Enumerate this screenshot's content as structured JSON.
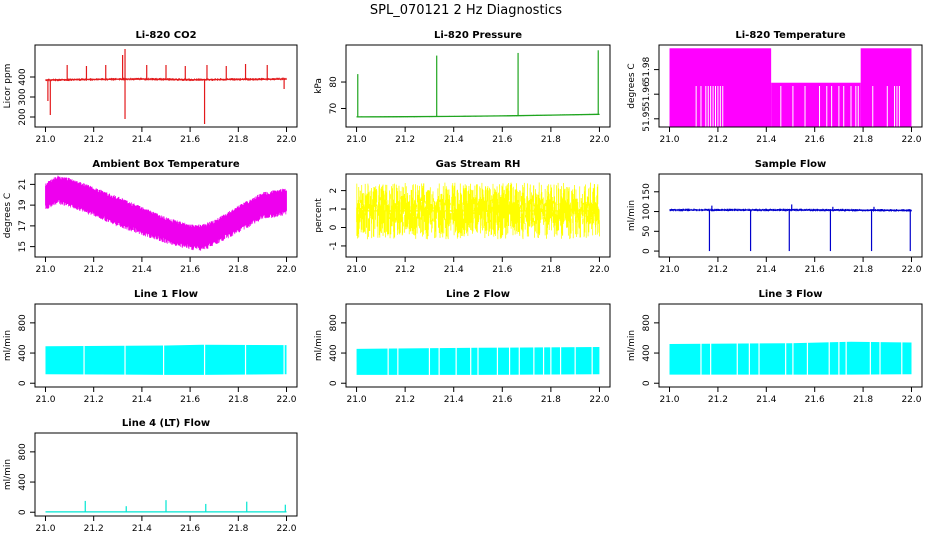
{
  "figure_title": "SPL_070121  2 Hz Diagnostics",
  "chart_data": [
    {
      "type": "line",
      "title": "Li-820 CO2",
      "ylabel": "Licor ppm",
      "xlim": [
        21.0,
        22.0
      ],
      "ylim": [
        150,
        560
      ],
      "xticks": [
        "21.0",
        "21.2",
        "21.4",
        "21.6",
        "21.8",
        "22.0"
      ],
      "yticks": [
        {
          "v": 200,
          "label": "200"
        },
        {
          "v": 300,
          "label": "300"
        },
        {
          "v": 400,
          "label": "400"
        }
      ],
      "color": "#e31a1c",
      "render": "noise",
      "series": [
        {
          "x": [
            21.0,
            21.2,
            21.4,
            21.6,
            21.8,
            22.0
          ],
          "y": [
            385,
            388,
            390,
            386,
            388,
            390
          ]
        }
      ],
      "band": 10,
      "spikes": [
        {
          "x": 21.01,
          "y": 280
        },
        {
          "x": 21.02,
          "y": 210
        },
        {
          "x": 21.09,
          "y": 460
        },
        {
          "x": 21.17,
          "y": 455
        },
        {
          "x": 21.25,
          "y": 460
        },
        {
          "x": 21.32,
          "y": 510
        },
        {
          "x": 21.33,
          "y": 190
        },
        {
          "x": 21.33,
          "y": 540
        },
        {
          "x": 21.42,
          "y": 460
        },
        {
          "x": 21.5,
          "y": 460
        },
        {
          "x": 21.58,
          "y": 455
        },
        {
          "x": 21.66,
          "y": 165
        },
        {
          "x": 21.67,
          "y": 460
        },
        {
          "x": 21.75,
          "y": 455
        },
        {
          "x": 21.83,
          "y": 465
        },
        {
          "x": 21.92,
          "y": 460
        },
        {
          "x": 21.99,
          "y": 340
        }
      ]
    },
    {
      "type": "line",
      "title": "Li-820 Pressure",
      "ylabel": "kPa",
      "xlim": [
        21.0,
        22.0
      ],
      "ylim": [
        63,
        94
      ],
      "xticks": [
        "21.0",
        "21.2",
        "21.4",
        "21.6",
        "21.8",
        "22.0"
      ],
      "yticks": [
        {
          "v": 70,
          "label": "70"
        },
        {
          "v": 80,
          "label": "80"
        }
      ],
      "color": "#1fa51f",
      "render": "noise",
      "series": [
        {
          "x": [
            21.0,
            21.2,
            21.4,
            21.6,
            21.8,
            22.0
          ],
          "y": [
            66.8,
            66.9,
            67.0,
            67.2,
            67.5,
            67.8
          ]
        }
      ],
      "band": 0.3,
      "spikes": [
        {
          "x": 21.005,
          "y": 83
        },
        {
          "x": 21.33,
          "y": 90
        },
        {
          "x": 21.665,
          "y": 91
        },
        {
          "x": 21.995,
          "y": 92
        }
      ]
    },
    {
      "type": "area",
      "title": "Li-820 Temperature",
      "ylabel": "degrees C",
      "xlim": [
        21.0,
        22.0
      ],
      "ylim": [
        51.945,
        51.995
      ],
      "xticks": [
        "21.0",
        "21.2",
        "21.4",
        "21.6",
        "21.8",
        "22.0"
      ],
      "yticks": [
        {
          "v": 51.95,
          "label": "51.95"
        },
        {
          "v": 51.965,
          "label": "51.96"
        },
        {
          "v": 51.98,
          "label": "51.98"
        }
      ],
      "color": "#ff00ff",
      "render": "bands",
      "bands": [
        {
          "x0": 21.0,
          "x1": 21.42,
          "ylo": 51.945,
          "yhi": 51.993
        },
        {
          "x0": 21.42,
          "x1": 21.79,
          "ylo": 51.945,
          "yhi": 51.972
        },
        {
          "x0": 21.79,
          "x1": 22.0,
          "ylo": 51.945,
          "yhi": 51.993
        }
      ],
      "notches": [
        21.11,
        21.13,
        21.15,
        21.16,
        21.17,
        21.18,
        21.19,
        21.2,
        21.21,
        21.22,
        21.46,
        21.51,
        21.56,
        21.62,
        21.65,
        21.67,
        21.7,
        21.72,
        21.75,
        21.77,
        21.78,
        21.84,
        21.9,
        21.93,
        21.94,
        21.95
      ],
      "notch_top": 51.97
    },
    {
      "type": "area",
      "title": "Ambient Box Temperature",
      "ylabel": "degrees C",
      "xlim": [
        21.0,
        22.0
      ],
      "ylim": [
        14.0,
        22.0
      ],
      "xticks": [
        "21.0",
        "21.2",
        "21.4",
        "21.6",
        "21.8",
        "22.0"
      ],
      "yticks": [
        {
          "v": 15,
          "label": "15"
        },
        {
          "v": 17,
          "label": "17"
        },
        {
          "v": 19,
          "label": "19"
        },
        {
          "v": 21,
          "label": "21"
        }
      ],
      "color": "#ee00ee",
      "render": "envelope",
      "x": [
        21.0,
        21.05,
        21.1,
        21.2,
        21.3,
        21.4,
        21.5,
        21.6,
        21.65,
        21.7,
        21.8,
        21.9,
        22.0
      ],
      "upper": [
        20.8,
        21.5,
        21.3,
        20.4,
        19.5,
        18.5,
        17.5,
        16.8,
        16.8,
        17.2,
        18.6,
        19.9,
        20.3
      ],
      "lower": [
        19.0,
        19.6,
        19.3,
        18.4,
        17.4,
        16.6,
        15.8,
        15.2,
        15.0,
        15.6,
        16.8,
        18.1,
        18.5
      ]
    },
    {
      "type": "line",
      "title": "Gas Stream RH",
      "ylabel": "percent",
      "xlim": [
        21.0,
        22.0
      ],
      "ylim": [
        -1.6,
        2.9
      ],
      "xticks": [
        "21.0",
        "21.2",
        "21.4",
        "21.6",
        "21.8",
        "22.0"
      ],
      "yticks": [
        {
          "v": -1,
          "label": "-1"
        },
        {
          "v": 0,
          "label": "0"
        },
        {
          "v": 1,
          "label": "1"
        },
        {
          "v": 2,
          "label": "2"
        }
      ],
      "color": "#ffff00",
      "render": "noise",
      "series": [
        {
          "x": [
            21.0,
            21.5,
            22.0
          ],
          "y": [
            0.9,
            0.9,
            0.9
          ]
        }
      ],
      "band": 2.2,
      "spikes": []
    },
    {
      "type": "line",
      "title": "Sample Flow",
      "ylabel": "ml/min",
      "xlim": [
        21.0,
        22.0
      ],
      "ylim": [
        -15,
        195
      ],
      "xticks": [
        "21.0",
        "21.2",
        "21.4",
        "21.6",
        "21.8",
        "22.0"
      ],
      "yticks": [
        {
          "v": 0,
          "label": "0"
        },
        {
          "v": 50,
          "label": "50"
        },
        {
          "v": 100,
          "label": "100"
        },
        {
          "v": 150,
          "label": "150"
        }
      ],
      "color": "#0000cc",
      "render": "noise",
      "series": [
        {
          "x": [
            21.0,
            21.5,
            22.0
          ],
          "y": [
            104,
            104,
            103
          ]
        }
      ],
      "band": 5,
      "spikes": [
        {
          "x": 21.165,
          "y": 0
        },
        {
          "x": 21.335,
          "y": 0
        },
        {
          "x": 21.495,
          "y": 0
        },
        {
          "x": 21.665,
          "y": 0
        },
        {
          "x": 21.835,
          "y": 0
        },
        {
          "x": 21.995,
          "y": 0
        },
        {
          "x": 21.175,
          "y": 115
        },
        {
          "x": 21.505,
          "y": 118
        },
        {
          "x": 21.675,
          "y": 112
        },
        {
          "x": 21.845,
          "y": 112
        }
      ]
    },
    {
      "type": "area",
      "title": "Line 1 Flow",
      "ylabel": "ml/min",
      "xlim": [
        21.0,
        22.0
      ],
      "ylim": [
        -50,
        1050
      ],
      "xticks": [
        "21.0",
        "21.2",
        "21.4",
        "21.6",
        "21.8",
        "22.0"
      ],
      "yticks": [
        {
          "v": 0,
          "label": "0"
        },
        {
          "v": 400,
          "label": "400"
        },
        {
          "v": 800,
          "label": "800"
        }
      ],
      "color": "#00ffff",
      "render": "fill",
      "x": [
        21.0,
        21.5,
        21.65,
        22.0
      ],
      "upper": [
        490,
        500,
        510,
        505
      ],
      "lower": [
        120,
        110,
        110,
        120
      ],
      "gaps": [
        21.16,
        21.33,
        21.49,
        21.66,
        21.83,
        21.99
      ]
    },
    {
      "type": "area",
      "title": "Line 2 Flow",
      "ylabel": "ml/min",
      "xlim": [
        21.0,
        22.0
      ],
      "ylim": [
        -50,
        1050
      ],
      "xticks": [
        "21.0",
        "21.2",
        "21.4",
        "21.6",
        "21.8",
        "22.0"
      ],
      "yticks": [
        {
          "v": 0,
          "label": "0"
        },
        {
          "v": 400,
          "label": "400"
        },
        {
          "v": 800,
          "label": "800"
        }
      ],
      "color": "#00ffff",
      "render": "fill",
      "x": [
        21.0,
        21.5,
        22.0
      ],
      "upper": [
        455,
        470,
        480
      ],
      "lower": [
        110,
        110,
        120
      ],
      "gaps": [
        21.13,
        21.17,
        21.3,
        21.34,
        21.41,
        21.47,
        21.5,
        21.58,
        21.63,
        21.67,
        21.73,
        21.77,
        21.8,
        21.84,
        21.9,
        21.97
      ]
    },
    {
      "type": "area",
      "title": "Line 3 Flow",
      "ylabel": "ml/min",
      "xlim": [
        21.0,
        22.0
      ],
      "ylim": [
        -50,
        1050
      ],
      "xticks": [
        "21.0",
        "21.2",
        "21.4",
        "21.6",
        "21.8",
        "22.0"
      ],
      "yticks": [
        {
          "v": 0,
          "label": "0"
        },
        {
          "v": 400,
          "label": "400"
        },
        {
          "v": 800,
          "label": "800"
        }
      ],
      "color": "#00ffff",
      "render": "fill",
      "x": [
        21.0,
        21.5,
        21.75,
        22.0
      ],
      "upper": [
        520,
        530,
        550,
        540
      ],
      "lower": [
        115,
        115,
        115,
        120
      ],
      "gaps": [
        21.13,
        21.17,
        21.28,
        21.33,
        21.37,
        21.48,
        21.51,
        21.57,
        21.66,
        21.7,
        21.73,
        21.83,
        21.87,
        21.96
      ]
    },
    {
      "type": "line",
      "title": "Line 4 (LT) Flow",
      "ylabel": "ml/min",
      "xlim": [
        21.0,
        22.0
      ],
      "ylim": [
        -50,
        1050
      ],
      "xticks": [
        "21.0",
        "21.2",
        "21.4",
        "21.6",
        "21.8",
        "22.0"
      ],
      "yticks": [
        {
          "v": 0,
          "label": "0"
        },
        {
          "v": 400,
          "label": "400"
        },
        {
          "v": 800,
          "label": "800"
        }
      ],
      "color": "#00e6d2",
      "render": "noise",
      "series": [
        {
          "x": [
            21.0,
            22.0
          ],
          "y": [
            5,
            5
          ]
        }
      ],
      "band": 4,
      "spikes": [
        {
          "x": 21.165,
          "y": 150
        },
        {
          "x": 21.335,
          "y": 80
        },
        {
          "x": 21.5,
          "y": 160
        },
        {
          "x": 21.665,
          "y": 110
        },
        {
          "x": 21.835,
          "y": 140
        },
        {
          "x": 21.995,
          "y": 100
        }
      ]
    }
  ]
}
